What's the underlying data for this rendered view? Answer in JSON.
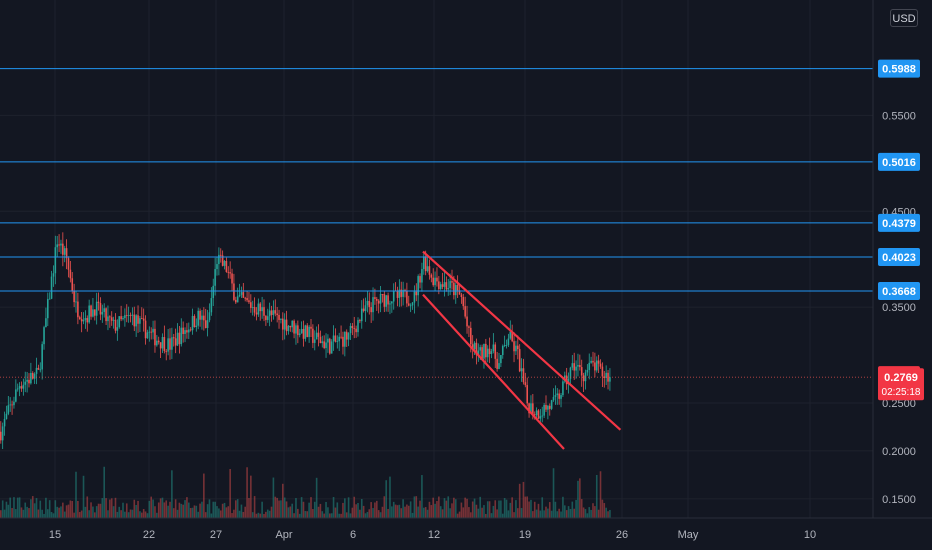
{
  "chart_data": {
    "type": "candlestick",
    "currency": "USD",
    "y_axis": {
      "ticks": [
        "0.5500",
        "0.4500",
        "0.3500",
        "0.2500",
        "0.2000",
        "0.1500"
      ],
      "range": [
        0.13,
        0.66
      ]
    },
    "x_axis": {
      "ticks": [
        "15",
        "22",
        "27",
        "Apr",
        "6",
        "12",
        "19",
        "26",
        "May",
        "10"
      ]
    },
    "horizontal_levels": [
      {
        "value": 0.5988,
        "label": "0.5988"
      },
      {
        "value": 0.5016,
        "label": "0.5016"
      },
      {
        "value": 0.4379,
        "label": "0.4379"
      },
      {
        "value": 0.4023,
        "label": "0.4023"
      },
      {
        "value": 0.3668,
        "label": "0.3668"
      }
    ],
    "current_price": {
      "value": 0.2769,
      "label": "0.2769",
      "countdown": "02:25:18"
    },
    "last_high": {
      "value": 0.2791,
      "label": "0.2791"
    },
    "price_path": [
      {
        "day": 0,
        "price": 0.22
      },
      {
        "day": 2,
        "price": 0.27
      },
      {
        "day": 4,
        "price": 0.28
      },
      {
        "day": 5,
        "price": 0.35
      },
      {
        "day": 6,
        "price": 0.42
      },
      {
        "day": 7,
        "price": 0.4
      },
      {
        "day": 8,
        "price": 0.35
      },
      {
        "day": 9,
        "price": 0.34
      },
      {
        "day": 10,
        "price": 0.35
      },
      {
        "day": 12,
        "price": 0.33
      },
      {
        "day": 14,
        "price": 0.34
      },
      {
        "day": 16,
        "price": 0.32
      },
      {
        "day": 18,
        "price": 0.31
      },
      {
        "day": 20,
        "price": 0.33
      },
      {
        "day": 21,
        "price": 0.34
      },
      {
        "day": 22,
        "price": 0.33
      },
      {
        "day": 23,
        "price": 0.4
      },
      {
        "day": 24,
        "price": 0.39
      },
      {
        "day": 25,
        "price": 0.36
      },
      {
        "day": 27,
        "price": 0.35
      },
      {
        "day": 29,
        "price": 0.34
      },
      {
        "day": 31,
        "price": 0.33
      },
      {
        "day": 33,
        "price": 0.32
      },
      {
        "day": 35,
        "price": 0.31
      },
      {
        "day": 37,
        "price": 0.32
      },
      {
        "day": 39,
        "price": 0.35
      },
      {
        "day": 41,
        "price": 0.36
      },
      {
        "day": 43,
        "price": 0.36
      },
      {
        "day": 44,
        "price": 0.36
      },
      {
        "day": 45,
        "price": 0.4
      },
      {
        "day": 46,
        "price": 0.38
      },
      {
        "day": 48,
        "price": 0.37
      },
      {
        "day": 49,
        "price": 0.36
      },
      {
        "day": 50,
        "price": 0.31
      },
      {
        "day": 51,
        "price": 0.3
      },
      {
        "day": 52,
        "price": 0.31
      },
      {
        "day": 53,
        "price": 0.29
      },
      {
        "day": 54,
        "price": 0.32
      },
      {
        "day": 55,
        "price": 0.3
      },
      {
        "day": 56,
        "price": 0.25
      },
      {
        "day": 57,
        "price": 0.24
      },
      {
        "day": 59,
        "price": 0.25
      },
      {
        "day": 60,
        "price": 0.27
      },
      {
        "day": 61,
        "price": 0.29
      },
      {
        "day": 62,
        "price": 0.28
      },
      {
        "day": 63,
        "price": 0.29
      },
      {
        "day": 64,
        "price": 0.28
      },
      {
        "day": 65,
        "price": 0.277
      }
    ],
    "trendlines": [
      {
        "from": {
          "day": 45,
          "price": 0.408
        },
        "to": {
          "day": 66,
          "price": 0.222
        }
      },
      {
        "from": {
          "day": 45,
          "price": 0.363
        },
        "to": {
          "day": 60,
          "price": 0.202
        }
      }
    ]
  },
  "colors": {
    "background": "#131722",
    "up": "#26a69a",
    "down": "#ef5350",
    "level_line": "#2196f3",
    "badge_blue": "#2196f3",
    "badge_red": "#f23645",
    "trendline": "#f23645",
    "grid": "#1e222d",
    "axis_text": "#b2b5be"
  }
}
